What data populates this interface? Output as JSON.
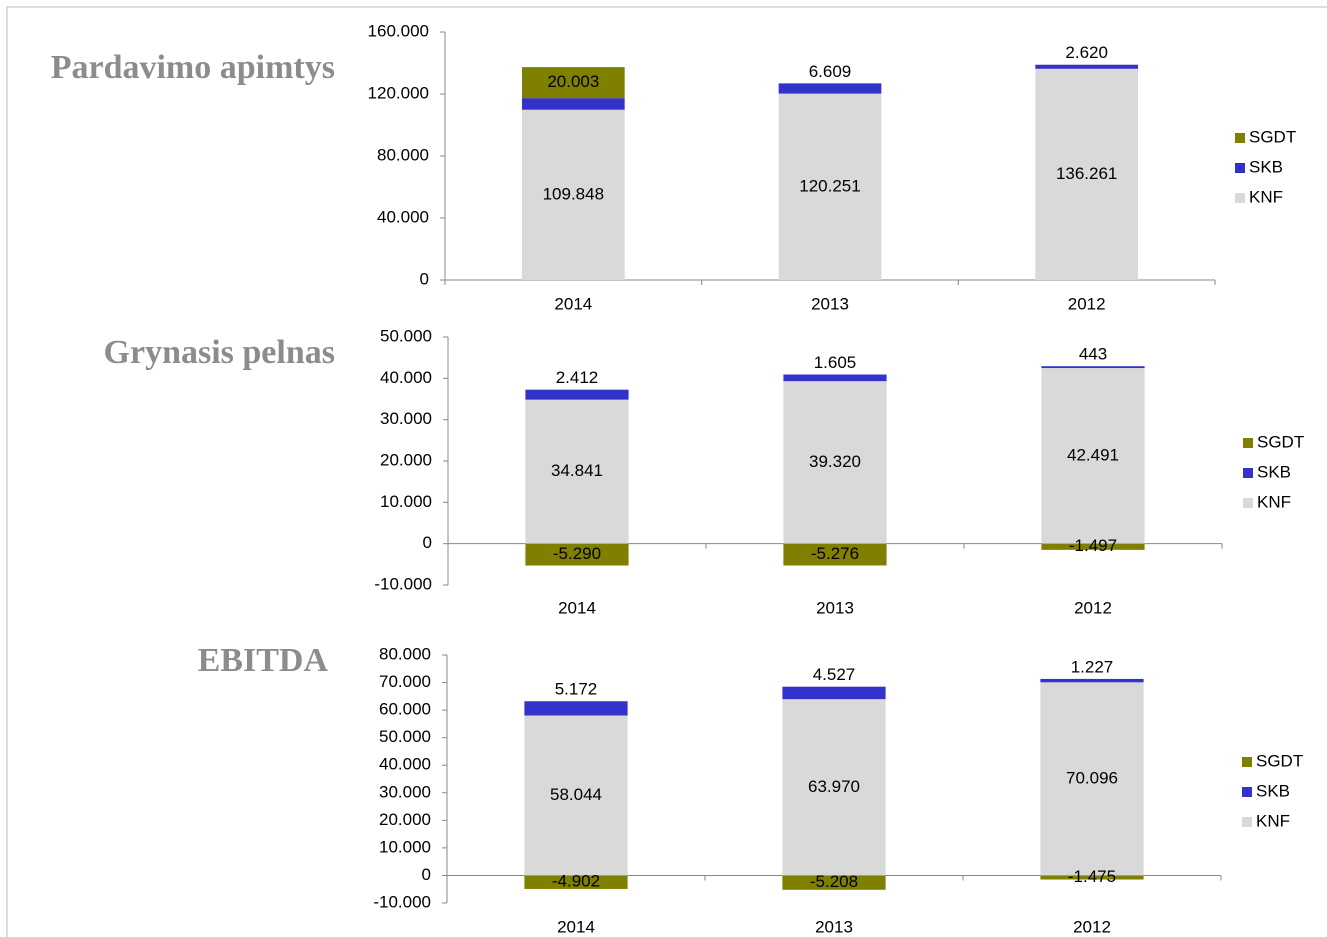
{
  "chart_data": [
    {
      "type": "bar",
      "stacked": true,
      "title": "Pardavimo apimtys",
      "categories": [
        "2014",
        "2013",
        "2012"
      ],
      "series": [
        {
          "name": "KNF",
          "color": "#d9d9d9",
          "values": [
            109848,
            120251,
            136261
          ],
          "value_labels": [
            "109.848",
            "120.251",
            "136.261"
          ]
        },
        {
          "name": "SKB",
          "color": "#3333cc",
          "values": [
            7483,
            6609,
            2620
          ],
          "value_labels": [
            "7.483",
            "6.609",
            "2.620"
          ]
        },
        {
          "name": "SGDT",
          "color": "#808000",
          "values": [
            20003,
            null,
            null
          ],
          "value_labels": [
            "20.003",
            null,
            null
          ]
        }
      ],
      "ylim": [
        0,
        160000
      ],
      "yticks": [
        0,
        {
          "value": 40000,
          "label": "40.000"
        },
        {
          "value": 80000,
          "label": "80.000"
        },
        {
          "value": 120000,
          "label": "120.000"
        },
        {
          "value": 160000,
          "label": "160.000"
        }
      ],
      "legend": "right"
    },
    {
      "type": "bar",
      "stacked": true,
      "title": "Grynasis pelnas",
      "categories": [
        "2014",
        "2013",
        "2012"
      ],
      "series": [
        {
          "name": "KNF",
          "color": "#d9d9d9",
          "values": [
            34841,
            39320,
            42491
          ],
          "value_labels": [
            "34.841",
            "39.320",
            "42.491"
          ]
        },
        {
          "name": "SKB",
          "color": "#3333cc",
          "values": [
            2412,
            1605,
            443
          ],
          "value_labels": [
            "2.412",
            "1.605",
            "443"
          ]
        },
        {
          "name": "SGDT",
          "color": "#808000",
          "values": [
            -5290,
            -5276,
            -1497
          ],
          "value_labels": [
            "-5.290",
            "-5.276",
            "-1.497"
          ]
        }
      ],
      "ylim": [
        -10000,
        50000
      ],
      "yticks": [
        {
          "value": -10000,
          "label": "-10.000"
        },
        0,
        {
          "value": 10000,
          "label": "10.000"
        },
        {
          "value": 20000,
          "label": "20.000"
        },
        {
          "value": 30000,
          "label": "30.000"
        },
        {
          "value": 40000,
          "label": "40.000"
        },
        {
          "value": 50000,
          "label": "50.000"
        }
      ],
      "legend": "right"
    },
    {
      "type": "bar",
      "stacked": true,
      "title": "EBITDA",
      "categories": [
        "2014",
        "2013",
        "2012"
      ],
      "series": [
        {
          "name": "KNF",
          "color": "#d9d9d9",
          "values": [
            58044,
            63970,
            70096
          ],
          "value_labels": [
            "58.044",
            "63.970",
            "70.096"
          ]
        },
        {
          "name": "SKB",
          "color": "#3333cc",
          "values": [
            5172,
            4527,
            1227
          ],
          "value_labels": [
            "5.172",
            "4.527",
            "1.227"
          ]
        },
        {
          "name": "SGDT",
          "color": "#808000",
          "values": [
            -4902,
            -5208,
            -1475
          ],
          "value_labels": [
            "-4.902",
            "-5.208",
            "-1.475"
          ]
        }
      ],
      "ylim": [
        -10000,
        80000
      ],
      "yticks": [
        {
          "value": -10000,
          "label": "-10.000"
        },
        0,
        {
          "value": 10000,
          "label": "10.000"
        },
        {
          "value": 20000,
          "label": "20.000"
        },
        {
          "value": 30000,
          "label": "30.000"
        },
        {
          "value": 40000,
          "label": "40.000"
        },
        {
          "value": 50000,
          "label": "50.000"
        },
        {
          "value": 60000,
          "label": "60.000"
        },
        {
          "value": 70000,
          "label": "70.000"
        },
        {
          "value": 80000,
          "label": "80.000"
        }
      ],
      "legend": "right"
    }
  ]
}
